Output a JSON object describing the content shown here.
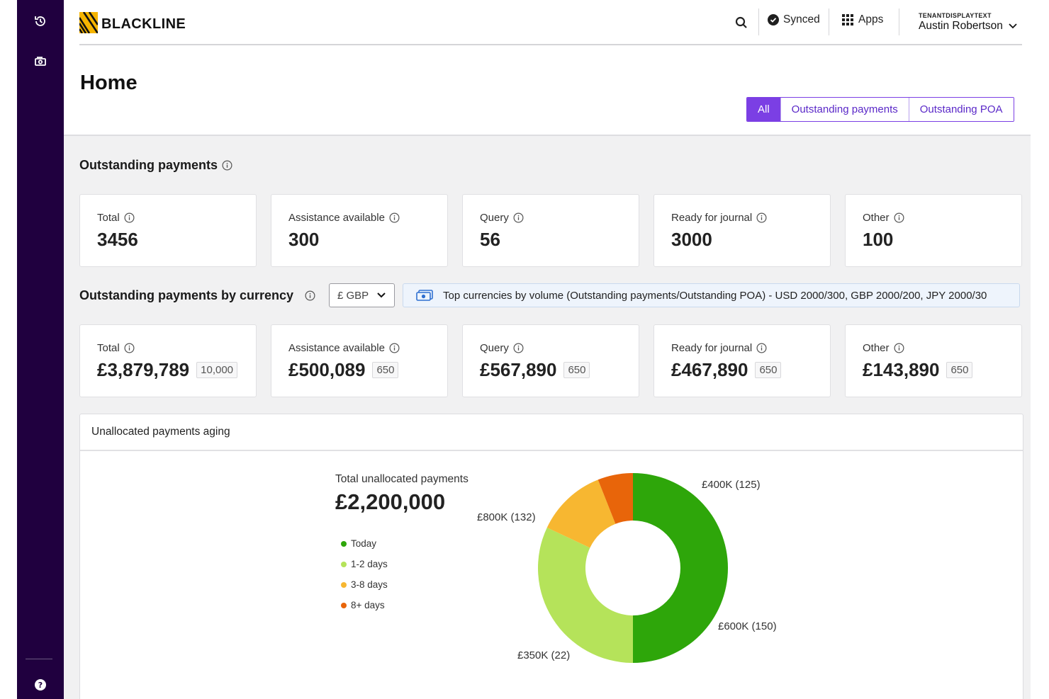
{
  "header": {
    "brand": "BLACKLINE",
    "synced_label": "Synced",
    "apps_label": "Apps",
    "tenant": "TENANTDISPLAYTEXT",
    "user_name": "Austin Robertson"
  },
  "page": {
    "title": "Home",
    "filters": [
      "All",
      "Outstanding payments",
      "Outstanding POA"
    ],
    "active_filter": "All"
  },
  "outstanding": {
    "title": "Outstanding payments",
    "cards": [
      {
        "label": "Total",
        "value": "3456"
      },
      {
        "label": "Assistance available",
        "value": "300"
      },
      {
        "label": "Query",
        "value": "56"
      },
      {
        "label": "Ready for journal",
        "value": "3000"
      },
      {
        "label": "Other",
        "value": "100"
      }
    ]
  },
  "by_currency": {
    "title": "Outstanding payments by currency",
    "currency": "£ GBP",
    "banner": "Top currencies by volume (Outstanding payments/Outstanding POA) - USD 2000/300, GBP 2000/200, JPY 2000/30",
    "cards": [
      {
        "label": "Total",
        "value": "£3,879,789",
        "count": "10,000"
      },
      {
        "label": "Assistance available",
        "value": "£500,089",
        "count": "650"
      },
      {
        "label": "Query",
        "value": "£567,890",
        "count": "650"
      },
      {
        "label": "Ready for journal",
        "value": "£467,890",
        "count": "650"
      },
      {
        "label": "Other",
        "value": "£143,890",
        "count": "650"
      }
    ]
  },
  "aging": {
    "title": "Unallocated payments aging",
    "total_label": "Total unallocated payments",
    "total_value": "£2,200,000",
    "legend": [
      {
        "label": "Today",
        "color": "#2ea60a"
      },
      {
        "label": "1-2 days",
        "color": "#b5e35a"
      },
      {
        "label": "3-8 days",
        "color": "#f7b731"
      },
      {
        "label": "8+  days",
        "color": "#e8650a"
      }
    ],
    "slice_labels": {
      "s400": "£400K (125)",
      "s800": "£800K (132)",
      "s600": "£600K (150)",
      "s350": "£350K (22)"
    }
  },
  "chart_data": {
    "type": "pie",
    "title": "Unallocated payments aging",
    "series": [
      {
        "name": "Today",
        "value": 50,
        "color": "#2ea60a"
      },
      {
        "name": "1-2 days",
        "value": 32,
        "color": "#b5e35a"
      },
      {
        "name": "3-8 days",
        "value": 12,
        "color": "#f7b731"
      },
      {
        "name": "8+  days",
        "value": 6,
        "color": "#e8650a"
      }
    ]
  }
}
